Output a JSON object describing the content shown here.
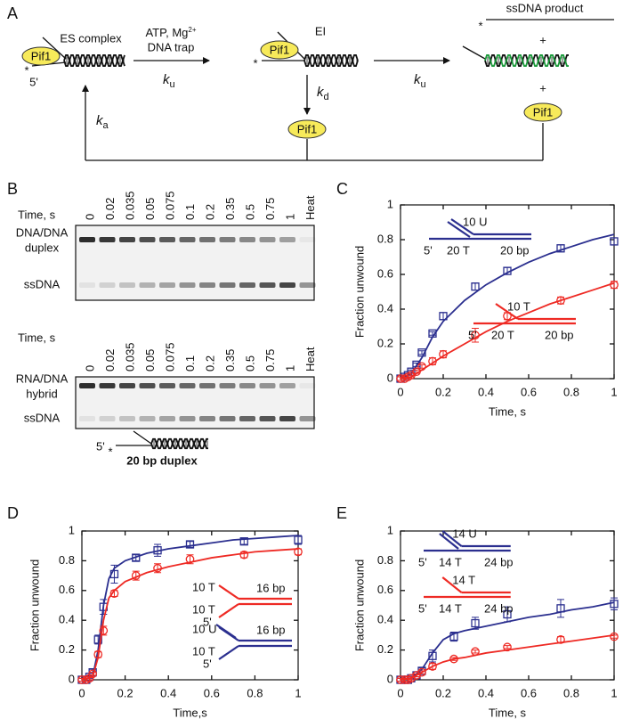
{
  "diagram": {
    "panel_label": "A",
    "es_complex": "ES complex",
    "pif1": "Pif1",
    "five_prime": "5'",
    "star": "*",
    "condition": {
      "text": "ATP, Mg",
      "superscript": "2+"
    },
    "trap": "DNA trap",
    "ku": {
      "symbol": "k",
      "subscript": "u"
    },
    "kd": {
      "symbol": "k",
      "subscript": "d"
    },
    "ka": {
      "symbol": "k",
      "subscript": "a"
    },
    "ei": "EI",
    "product": "ssDNA product",
    "plus": "+"
  },
  "gel": {
    "panel_label": "B",
    "time_label": "Time, s",
    "lanes": [
      "0",
      "0.02",
      "0.035",
      "0.05",
      "0.075",
      "0.1",
      "0.2",
      "0.35",
      "0.5",
      "0.75",
      "1",
      "Heat"
    ],
    "top_gel": {
      "upper_band": [
        "DNA/DNA",
        "duplex"
      ],
      "lower_band": "ssDNA"
    },
    "bottom_gel": {
      "upper_band": [
        "RNA/DNA",
        "hybrid"
      ],
      "lower_band": "ssDNA"
    },
    "substrate": {
      "five_prime": "5'",
      "star": "*",
      "label": "20 bp duplex"
    }
  },
  "chart_data": [
    {
      "type": "scatter",
      "panel_label": "C",
      "xlabel": "Time, s",
      "ylabel": "Fraction unwound",
      "xlim": [
        0,
        1
      ],
      "ylim": [
        0,
        1
      ],
      "xticks": [
        0,
        0.2,
        0.4,
        0.6,
        0.8,
        1
      ],
      "yticks": [
        0,
        0.2,
        0.4,
        0.6,
        0.8,
        1
      ],
      "x": [
        0,
        0.02,
        0.035,
        0.05,
        0.075,
        0.1,
        0.15,
        0.2,
        0.35,
        0.5,
        0.75,
        1
      ],
      "fit_x": [
        0,
        0.05,
        0.1,
        0.15,
        0.2,
        0.3,
        0.4,
        0.5,
        0.6,
        0.7,
        0.8,
        0.9,
        1
      ],
      "series": [
        {
          "color": "#2b2f8f",
          "marker": "square",
          "values": [
            0,
            0.01,
            0.02,
            0.04,
            0.08,
            0.15,
            0.26,
            0.36,
            0.53,
            0.62,
            0.75,
            0.79
          ],
          "errors": [
            0.01,
            0.01,
            0.01,
            0.01,
            0.01,
            0.01,
            0.01,
            0.02,
            0.02,
            0.02,
            0.02,
            0.02
          ],
          "fit": [
            0,
            0.03,
            0.12,
            0.24,
            0.33,
            0.45,
            0.54,
            0.61,
            0.67,
            0.72,
            0.76,
            0.8,
            0.83
          ]
        },
        {
          "color": "#ee2a24",
          "marker": "circle",
          "values": [
            0,
            0,
            0.01,
            0.02,
            0.04,
            0.07,
            0.1,
            0.14,
            0.25,
            0.36,
            0.45,
            0.54
          ],
          "errors": [
            0.01,
            0.01,
            0.01,
            0.01,
            0.01,
            0.01,
            0.02,
            0.02,
            0.04,
            0.02,
            0.02,
            0.02
          ],
          "fit": [
            0,
            0.01,
            0.05,
            0.09,
            0.13,
            0.2,
            0.27,
            0.33,
            0.38,
            0.43,
            0.47,
            0.51,
            0.55
          ]
        }
      ],
      "annotations": [
        {
          "color": "#2b2f8f",
          "texts": [
            "10 U",
            "5'",
            "20 T",
            "20 bp"
          ]
        },
        {
          "color": "#ee2a24",
          "texts": [
            "10 T",
            "5'",
            "20 T",
            "20 bp"
          ]
        }
      ]
    },
    {
      "type": "scatter",
      "panel_label": "D",
      "xlabel": "Time,s",
      "ylabel": "Fraction unwound",
      "xlim": [
        0,
        1
      ],
      "ylim": [
        0,
        1
      ],
      "xticks": [
        0,
        0.2,
        0.4,
        0.6,
        0.8,
        1
      ],
      "yticks": [
        0,
        0.2,
        0.4,
        0.6,
        0.8,
        1
      ],
      "x": [
        0,
        0.02,
        0.035,
        0.05,
        0.075,
        0.1,
        0.15,
        0.25,
        0.35,
        0.5,
        0.75,
        1
      ],
      "fit_x": [
        0,
        0.05,
        0.075,
        0.1,
        0.125,
        0.15,
        0.2,
        0.3,
        0.4,
        0.5,
        0.6,
        0.7,
        0.8,
        0.9,
        1
      ],
      "series": [
        {
          "color": "#2b2f8f",
          "marker": "square",
          "values": [
            0,
            0,
            0.02,
            0.05,
            0.27,
            0.49,
            0.71,
            0.82,
            0.87,
            0.91,
            0.93,
            0.94
          ],
          "errors": [
            0.01,
            0.01,
            0.01,
            0.02,
            0.03,
            0.05,
            0.06,
            0.02,
            0.04,
            0.02,
            0.02,
            0.03
          ],
          "fit": [
            0,
            0.02,
            0.2,
            0.5,
            0.68,
            0.75,
            0.8,
            0.85,
            0.88,
            0.9,
            0.92,
            0.94,
            0.95,
            0.96,
            0.97
          ]
        },
        {
          "color": "#ee2a24",
          "marker": "circle",
          "values": [
            0,
            0,
            0.01,
            0.04,
            0.17,
            0.33,
            0.58,
            0.7,
            0.75,
            0.81,
            0.84,
            0.86
          ],
          "errors": [
            0.01,
            0.01,
            0.01,
            0.01,
            0.02,
            0.03,
            0.02,
            0.03,
            0.03,
            0.03,
            0.02,
            0.02
          ],
          "fit": [
            0,
            0.02,
            0.15,
            0.4,
            0.55,
            0.6,
            0.66,
            0.72,
            0.76,
            0.79,
            0.82,
            0.84,
            0.86,
            0.87,
            0.88
          ]
        }
      ],
      "annotations": [
        {
          "color": "#ee2a24",
          "texts": [
            "10 T",
            "16 bp",
            "10 T",
            "5'"
          ]
        },
        {
          "color": "#2b2f8f",
          "texts": [
            "10 U",
            "16 bp",
            "10 T",
            "5'"
          ]
        }
      ]
    },
    {
      "type": "scatter",
      "panel_label": "E",
      "xlabel": "Time, s",
      "ylabel": "Fraction unwound",
      "xlim": [
        0,
        1
      ],
      "ylim": [
        0,
        1
      ],
      "xticks": [
        0,
        0.2,
        0.4,
        0.6,
        0.8,
        1
      ],
      "yticks": [
        0,
        0.2,
        0.4,
        0.6,
        0.8,
        1
      ],
      "x": [
        0,
        0.02,
        0.035,
        0.05,
        0.075,
        0.1,
        0.15,
        0.25,
        0.35,
        0.5,
        0.75,
        1
      ],
      "fit_x": [
        0,
        0.05,
        0.1,
        0.15,
        0.2,
        0.25,
        0.3,
        0.4,
        0.5,
        0.6,
        0.7,
        0.8,
        0.9,
        1
      ],
      "series": [
        {
          "color": "#2b2f8f",
          "marker": "square",
          "values": [
            0,
            0,
            0,
            0.01,
            0.03,
            0.06,
            0.16,
            0.29,
            0.38,
            0.44,
            0.48,
            0.51
          ],
          "errors": [
            0.01,
            0.01,
            0.01,
            0.01,
            0.01,
            0.02,
            0.04,
            0.03,
            0.04,
            0.05,
            0.06,
            0.04
          ],
          "fit": [
            0,
            0.01,
            0.07,
            0.18,
            0.27,
            0.31,
            0.33,
            0.36,
            0.39,
            0.42,
            0.44,
            0.47,
            0.49,
            0.52
          ]
        },
        {
          "color": "#ee2a24",
          "marker": "circle",
          "values": [
            0,
            0,
            0,
            0.01,
            0.03,
            0.05,
            0.09,
            0.14,
            0.19,
            0.22,
            0.27,
            0.29
          ],
          "errors": [
            0.01,
            0.01,
            0.01,
            0.01,
            0.01,
            0.01,
            0.02,
            0.01,
            0.01,
            0.01,
            0.02,
            0.01
          ],
          "fit": [
            0,
            0.01,
            0.05,
            0.09,
            0.12,
            0.14,
            0.15,
            0.18,
            0.2,
            0.22,
            0.24,
            0.26,
            0.28,
            0.3
          ]
        }
      ],
      "annotations": [
        {
          "color": "#2b2f8f",
          "texts": [
            "14 U",
            "5'",
            "14 T",
            "24 bp"
          ]
        },
        {
          "color": "#ee2a24",
          "texts": [
            "14 T",
            "5'",
            "14 T",
            "24 bp"
          ]
        }
      ]
    }
  ]
}
